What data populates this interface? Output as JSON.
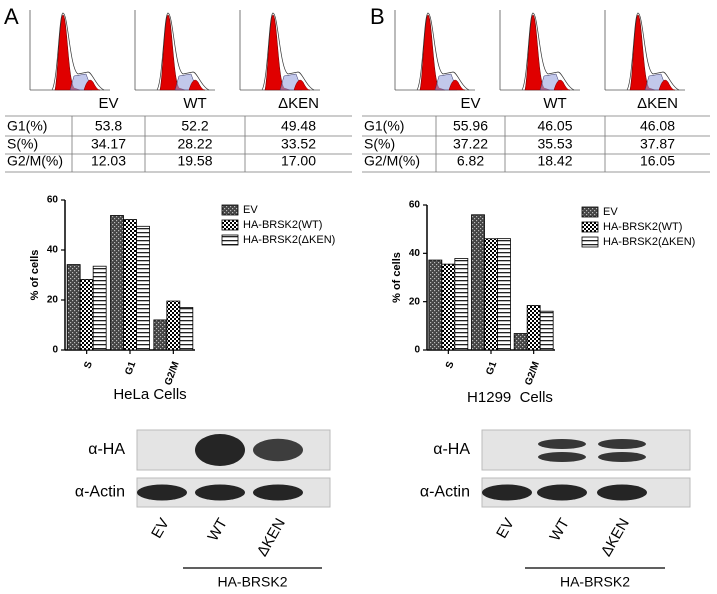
{
  "panels": [
    {
      "letter": "A",
      "table": {
        "header": [
          "EV",
          "WT",
          "ΔKEN"
        ],
        "rows": [
          [
            "G1(%)",
            "53.8",
            "52.2",
            "49.48"
          ],
          [
            "S(%)",
            "34.17",
            "28.22",
            "33.52"
          ],
          [
            "G2/M(%)",
            "12.03",
            "19.58",
            "17.00"
          ]
        ]
      },
      "blot": {
        "rows": [
          "α-HA",
          "α-Actin"
        ],
        "lanes": [
          "EV",
          "WT",
          "ΔKEN"
        ],
        "group": "HA-BRSK2"
      }
    },
    {
      "letter": "B",
      "table": {
        "header": [
          "EV",
          "WT",
          "ΔKEN"
        ],
        "rows": [
          [
            "G1(%)",
            "55.96",
            "46.05",
            "46.08"
          ],
          [
            "S(%)",
            "37.22",
            "35.53",
            "37.87"
          ],
          [
            "G2/M(%)",
            "6.82",
            "18.42",
            "16.05"
          ]
        ]
      },
      "blot": {
        "rows": [
          "α-HA",
          "α-Actin"
        ],
        "lanes": [
          "EV",
          "WT",
          "ΔKEN"
        ],
        "group": "HA-BRSK2"
      }
    }
  ],
  "chart_data": [
    {
      "type": "bar",
      "ylabel": "% of cells",
      "xlabel": "HeLa Cells",
      "categories": [
        "S",
        "G1",
        "G2/M"
      ],
      "series": [
        {
          "name": "EV",
          "color": "#444444",
          "pattern": "dots",
          "values": [
            34.17,
            53.8,
            12.03
          ]
        },
        {
          "name": "HA-BRSK2(WT)",
          "color": "#000000",
          "pattern": "checker",
          "values": [
            28.22,
            52.2,
            19.58
          ]
        },
        {
          "name": "HA-BRSK2(ΔKEN)",
          "color": "#222222",
          "pattern": "stripes",
          "values": [
            33.52,
            49.48,
            17.0
          ]
        }
      ],
      "ylim": [
        0,
        60
      ],
      "yticks": [
        0,
        20,
        40,
        60
      ],
      "legend": "upper right"
    },
    {
      "type": "bar",
      "ylabel": "% of cells",
      "xlabel": "H1299  Cells",
      "categories": [
        "S",
        "G1",
        "G2/M"
      ],
      "series": [
        {
          "name": "EV",
          "color": "#444444",
          "pattern": "dots",
          "values": [
            37.22,
            55.96,
            6.82
          ]
        },
        {
          "name": "HA-BRSK2(WT)",
          "color": "#000000",
          "pattern": "checker",
          "values": [
            35.53,
            46.05,
            18.42
          ]
        },
        {
          "name": "HA-BRSK2(ΔKEN)",
          "color": "#222222",
          "pattern": "stripes",
          "values": [
            37.87,
            46.08,
            16.05
          ]
        }
      ],
      "ylim": [
        0,
        60
      ],
      "yticks": [
        0,
        20,
        40,
        60
      ],
      "legend": "upper right"
    }
  ]
}
